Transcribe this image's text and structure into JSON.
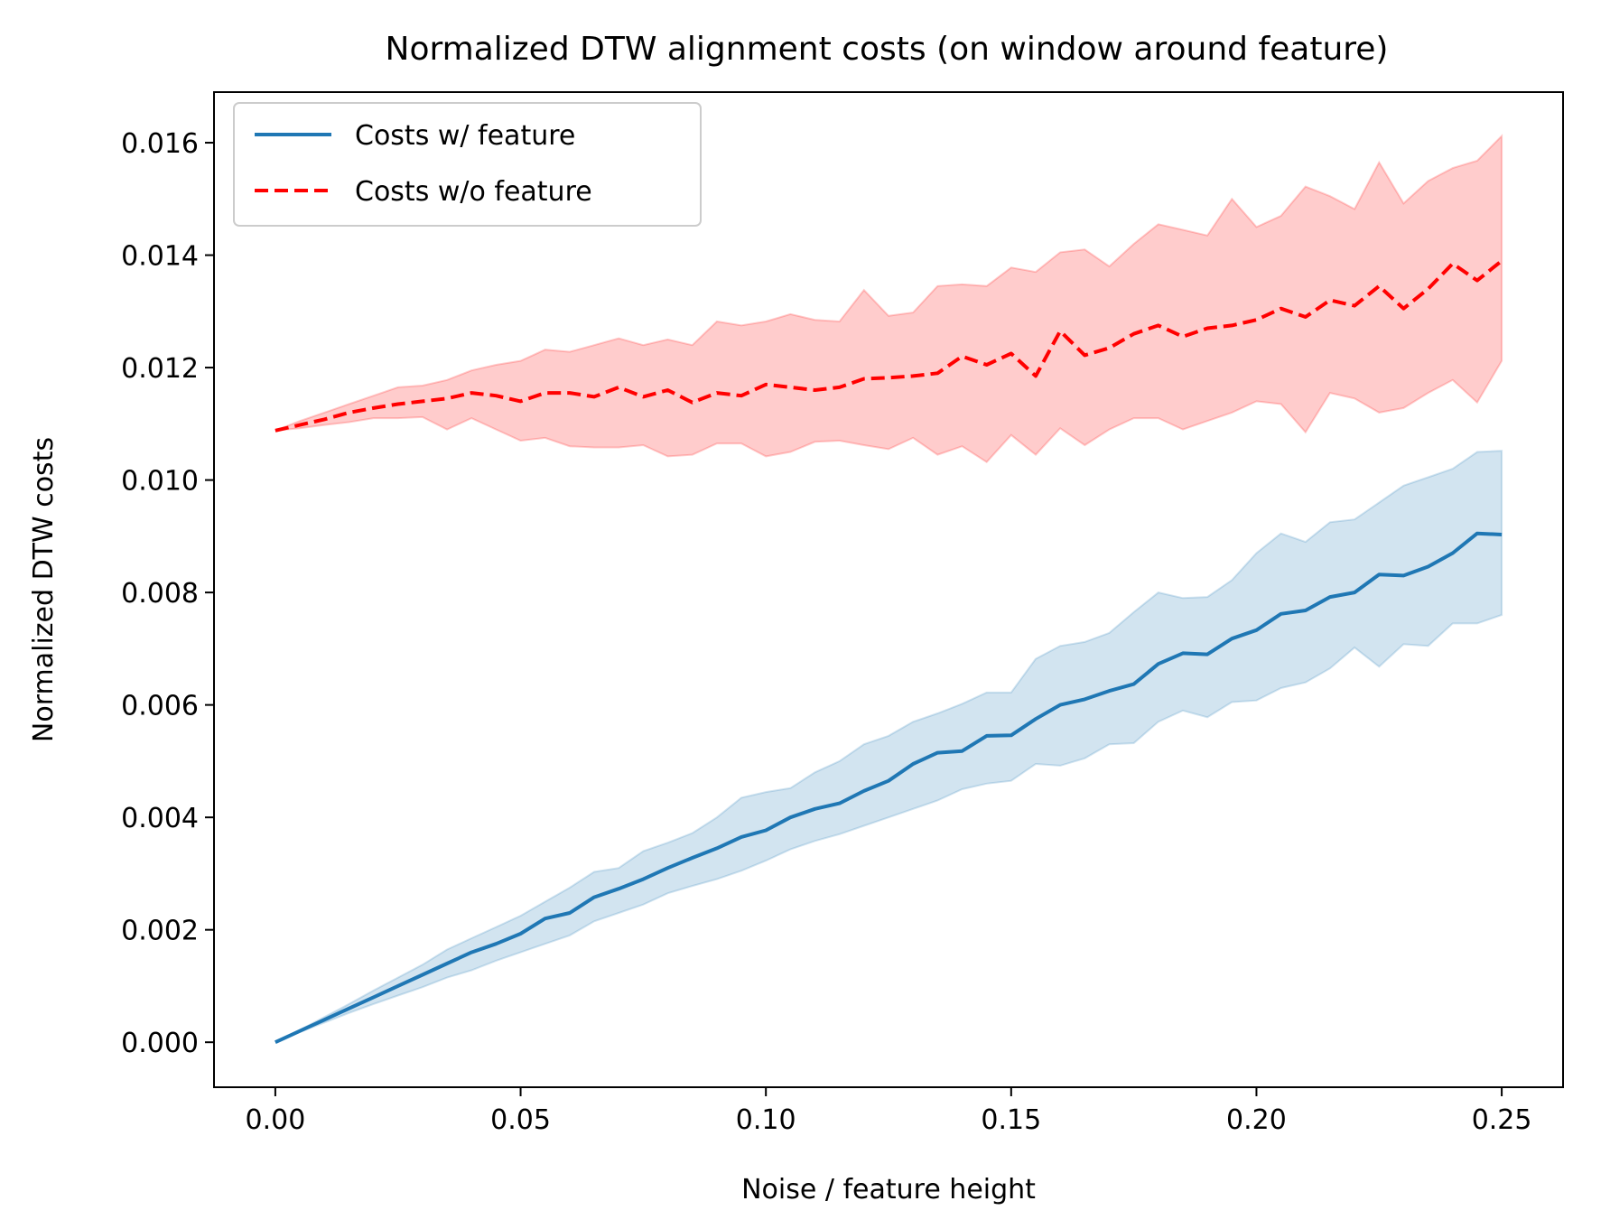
{
  "chart_data": {
    "type": "line",
    "title": "Normalized DTW alignment costs (on window around feature)",
    "xlabel": "Noise / feature height",
    "ylabel": "Normalized DTW costs",
    "xlim": [
      -0.0125,
      0.2625
    ],
    "ylim": [
      -0.0008,
      0.0169
    ],
    "x_ticks": [
      0.0,
      0.05,
      0.1,
      0.15,
      0.2,
      0.25
    ],
    "x_tick_labels": [
      "0.00",
      "0.05",
      "0.10",
      "0.15",
      "0.20",
      "0.25"
    ],
    "y_ticks": [
      0.0,
      0.002,
      0.004,
      0.006,
      0.008,
      0.01,
      0.012,
      0.014,
      0.016
    ],
    "y_tick_labels": [
      "0.000",
      "0.002",
      "0.004",
      "0.006",
      "0.008",
      "0.010",
      "0.012",
      "0.014",
      "0.016"
    ],
    "grid": false,
    "legend_position": "top-left",
    "x": [
      0.0,
      0.005,
      0.01,
      0.015,
      0.02,
      0.025,
      0.03,
      0.035,
      0.04,
      0.045,
      0.05,
      0.055,
      0.06,
      0.065,
      0.07,
      0.075,
      0.08,
      0.085,
      0.09,
      0.095,
      0.1,
      0.105,
      0.11,
      0.115,
      0.12,
      0.125,
      0.13,
      0.135,
      0.14,
      0.145,
      0.15,
      0.155,
      0.16,
      0.165,
      0.17,
      0.175,
      0.18,
      0.185,
      0.19,
      0.195,
      0.2,
      0.205,
      0.21,
      0.215,
      0.22,
      0.225,
      0.23,
      0.235,
      0.24,
      0.245,
      0.25
    ],
    "series": [
      {
        "name": "Costs w/ feature",
        "color": "#1f77b4",
        "linestyle": "solid",
        "fill_color": "#1f77b4",
        "values": [
          0.0,
          0.0002,
          0.0004,
          0.0006,
          0.0008,
          0.001,
          0.0012,
          0.0014,
          0.0016,
          0.00175,
          0.00193,
          0.0022,
          0.0023,
          0.00258,
          0.00273,
          0.0029,
          0.0031,
          0.00328,
          0.00345,
          0.00365,
          0.00377,
          0.004,
          0.00415,
          0.00425,
          0.00447,
          0.00465,
          0.00495,
          0.00515,
          0.00518,
          0.00545,
          0.00546,
          0.00575,
          0.006,
          0.0061,
          0.00625,
          0.00637,
          0.00673,
          0.00692,
          0.0069,
          0.00718,
          0.00733,
          0.00762,
          0.00768,
          0.00792,
          0.008,
          0.00832,
          0.0083,
          0.00846,
          0.0087,
          0.00905,
          0.00903
        ],
        "lower": [
          0.0,
          0.00018,
          0.00035,
          0.00052,
          0.00068,
          0.00083,
          0.00098,
          0.00115,
          0.00128,
          0.00145,
          0.0016,
          0.00175,
          0.0019,
          0.00215,
          0.0023,
          0.00245,
          0.00265,
          0.00278,
          0.0029,
          0.00305,
          0.00323,
          0.00343,
          0.00358,
          0.0037,
          0.00385,
          0.004,
          0.00415,
          0.0043,
          0.0045,
          0.0046,
          0.00465,
          0.00495,
          0.00492,
          0.00505,
          0.0053,
          0.00532,
          0.0057,
          0.0059,
          0.00578,
          0.00605,
          0.00608,
          0.0063,
          0.0064,
          0.00665,
          0.00702,
          0.00668,
          0.00708,
          0.00705,
          0.00745,
          0.00745,
          0.0076
        ],
        "upper": [
          0.0,
          0.00022,
          0.00045,
          0.00068,
          0.00092,
          0.00115,
          0.00138,
          0.00165,
          0.00185,
          0.00205,
          0.00225,
          0.0025,
          0.00275,
          0.00303,
          0.0031,
          0.0034,
          0.00355,
          0.00372,
          0.004,
          0.00435,
          0.00445,
          0.00452,
          0.0048,
          0.005,
          0.0053,
          0.00545,
          0.0057,
          0.00585,
          0.00602,
          0.00622,
          0.00622,
          0.00682,
          0.00705,
          0.00712,
          0.00728,
          0.00765,
          0.008,
          0.0079,
          0.00792,
          0.00822,
          0.0087,
          0.00905,
          0.0089,
          0.00925,
          0.0093,
          0.0096,
          0.0099,
          0.01005,
          0.0102,
          0.0105,
          0.01052
        ]
      },
      {
        "name": "Costs w/o feature",
        "color": "#ff0000",
        "linestyle": "dashed",
        "fill_color": "#ff0000",
        "values": [
          0.01088,
          0.01098,
          0.01108,
          0.0112,
          0.01128,
          0.01135,
          0.0114,
          0.01145,
          0.01155,
          0.0115,
          0.0114,
          0.01155,
          0.01155,
          0.01148,
          0.01165,
          0.01148,
          0.0116,
          0.01138,
          0.01155,
          0.0115,
          0.0117,
          0.01165,
          0.0116,
          0.01165,
          0.0118,
          0.01182,
          0.01185,
          0.0119,
          0.0122,
          0.01205,
          0.01225,
          0.01185,
          0.01265,
          0.01222,
          0.01235,
          0.0126,
          0.01275,
          0.01255,
          0.0127,
          0.01275,
          0.01285,
          0.01305,
          0.0129,
          0.0132,
          0.0131,
          0.01345,
          0.01305,
          0.0134,
          0.01385,
          0.01355,
          0.0139
        ],
        "lower": [
          0.01088,
          0.01092,
          0.01098,
          0.01103,
          0.0111,
          0.0111,
          0.01112,
          0.0109,
          0.0111,
          0.0109,
          0.0107,
          0.01075,
          0.0106,
          0.01058,
          0.01058,
          0.01062,
          0.01042,
          0.01045,
          0.01065,
          0.01065,
          0.01042,
          0.0105,
          0.01068,
          0.0107,
          0.01062,
          0.01055,
          0.01075,
          0.01045,
          0.0106,
          0.01032,
          0.0108,
          0.01045,
          0.01092,
          0.01062,
          0.0109,
          0.0111,
          0.0111,
          0.0109,
          0.01105,
          0.0112,
          0.0114,
          0.01135,
          0.01085,
          0.01155,
          0.01145,
          0.0112,
          0.01128,
          0.01155,
          0.01178,
          0.01138,
          0.01212
        ],
        "upper": [
          0.01088,
          0.01105,
          0.0112,
          0.01135,
          0.0115,
          0.01165,
          0.01168,
          0.01178,
          0.01195,
          0.01205,
          0.01212,
          0.01232,
          0.01228,
          0.0124,
          0.01252,
          0.0124,
          0.0125,
          0.0124,
          0.01282,
          0.01275,
          0.01282,
          0.01295,
          0.01285,
          0.01282,
          0.01338,
          0.01292,
          0.01298,
          0.01345,
          0.01348,
          0.01345,
          0.01378,
          0.0137,
          0.01405,
          0.0141,
          0.0138,
          0.0142,
          0.01455,
          0.01445,
          0.01435,
          0.015,
          0.0145,
          0.0147,
          0.01522,
          0.01505,
          0.01482,
          0.01565,
          0.01492,
          0.01532,
          0.01555,
          0.01568,
          0.01612
        ]
      }
    ]
  }
}
